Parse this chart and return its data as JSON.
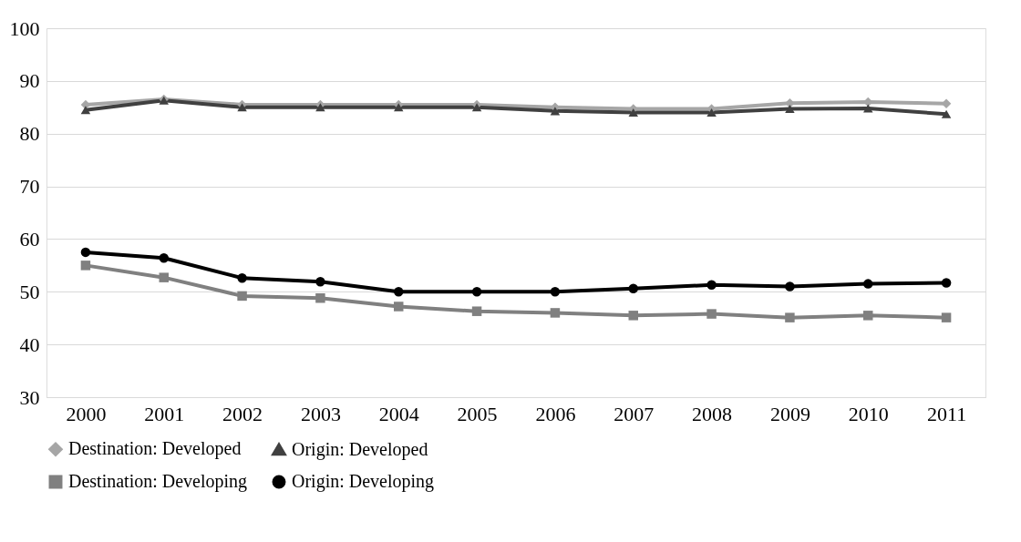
{
  "chart_data": {
    "type": "line",
    "categories": [
      "2000",
      "2001",
      "2002",
      "2003",
      "2004",
      "2005",
      "2006",
      "2007",
      "2008",
      "2009",
      "2010",
      "2011"
    ],
    "series": [
      {
        "name": "Destination: Developed",
        "color": "#a6a6a6",
        "marker": "diamond",
        "values": [
          85.5,
          86.5,
          85.5,
          85.5,
          85.5,
          85.5,
          85,
          84.7,
          84.7,
          85.8,
          86,
          85.7
        ]
      },
      {
        "name": "Origin: Developed",
        "color": "#404040",
        "marker": "triangle",
        "values": [
          84.5,
          86.3,
          85,
          85,
          85,
          85,
          84.3,
          84,
          84,
          84.7,
          84.8,
          83.7
        ]
      },
      {
        "name": "Destination: Developing",
        "color": "#808080",
        "marker": "square",
        "values": [
          55,
          52.7,
          49.2,
          48.8,
          47.2,
          46.3,
          46,
          45.5,
          45.8,
          45.1,
          45.5,
          45.1
        ]
      },
      {
        "name": "Origin: Developing",
        "color": "#000000",
        "marker": "circle",
        "values": [
          57.5,
          56.4,
          52.6,
          51.9,
          50,
          50,
          50,
          50.6,
          51.3,
          51,
          51.5,
          51.7
        ]
      }
    ],
    "ylim": [
      30,
      100
    ],
    "yticks": [
      30,
      40,
      50,
      60,
      70,
      80,
      90,
      100
    ],
    "grid": "y",
    "legend": "bottom",
    "line_style": "solid"
  }
}
